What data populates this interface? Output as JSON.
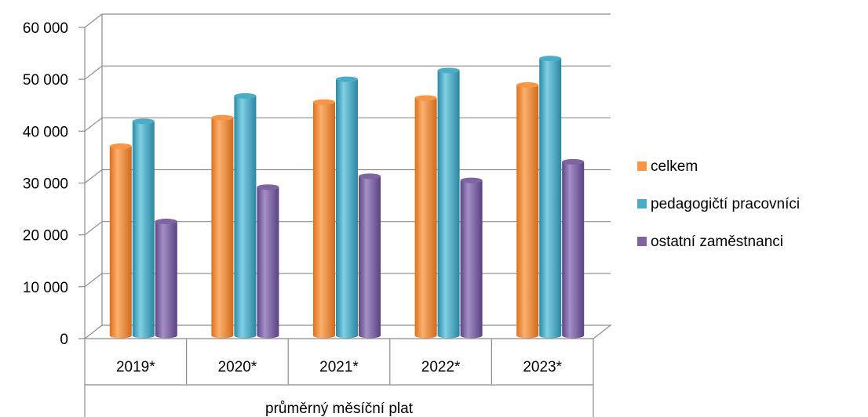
{
  "chart_data": {
    "type": "bar",
    "variant": "3d-clustered-cylinder",
    "categories": [
      "2019*",
      "2020*",
      "2021*",
      "2022*",
      "2023*"
    ],
    "group_label": "průměrný měsíční plat",
    "series": [
      {
        "name": "celkem",
        "color": "#F79646",
        "values": [
          36500,
          42000,
          45000,
          45800,
          48300
        ]
      },
      {
        "name": "pedagogičtí pracovníci",
        "color": "#4BACC6",
        "values": [
          41300,
          46200,
          49400,
          51100,
          53400
        ]
      },
      {
        "name": "ostatní zaměstnanci",
        "color": "#8064A2",
        "values": [
          22000,
          28600,
          30700,
          29900,
          33500
        ]
      }
    ],
    "ylim": [
      0,
      60000
    ],
    "y_ticks": [
      0,
      10000,
      20000,
      30000,
      40000,
      50000,
      60000
    ],
    "y_tick_labels": [
      "0",
      "10 000",
      "20 000",
      "30 000",
      "40 000",
      "50 000",
      "60 000"
    ],
    "grid": true,
    "legend_position": "right"
  }
}
